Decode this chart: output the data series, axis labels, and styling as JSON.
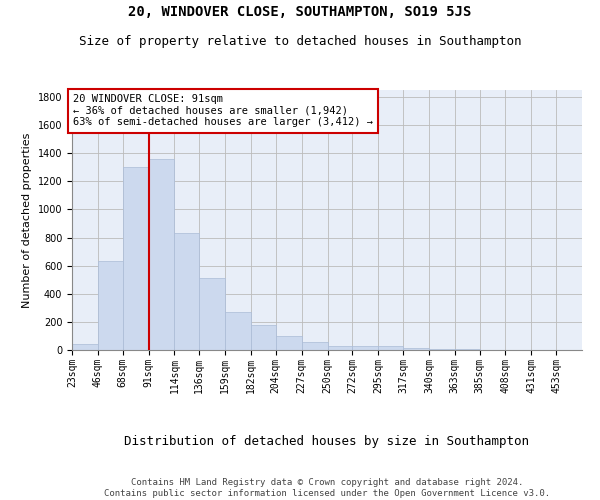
{
  "title": "20, WINDOVER CLOSE, SOUTHAMPTON, SO19 5JS",
  "subtitle": "Size of property relative to detached houses in Southampton",
  "xlabel": "Distribution of detached houses by size in Southampton",
  "ylabel": "Number of detached properties",
  "bar_color": "#ccd9ee",
  "bar_edgecolor": "#aabbd6",
  "grid_color": "#bbbbbb",
  "vline_x": 91,
  "vline_color": "#cc0000",
  "annotation_text": "20 WINDOVER CLOSE: 91sqm\n← 36% of detached houses are smaller (1,942)\n63% of semi-detached houses are larger (3,412) →",
  "annotation_box_color": "#ffffff",
  "annotation_box_edgecolor": "#cc0000",
  "footer_text": "Contains HM Land Registry data © Crown copyright and database right 2024.\nContains public sector information licensed under the Open Government Licence v3.0.",
  "bin_edges": [
    23,
    46,
    68,
    91,
    114,
    136,
    159,
    182,
    204,
    227,
    250,
    272,
    295,
    317,
    340,
    363,
    385,
    408,
    431,
    453,
    476
  ],
  "values": [
    40,
    630,
    1300,
    1360,
    830,
    510,
    270,
    175,
    100,
    55,
    30,
    28,
    25,
    15,
    10,
    5,
    3,
    2,
    2,
    1
  ],
  "ylim": [
    0,
    1850
  ],
  "yticks": [
    0,
    200,
    400,
    600,
    800,
    1000,
    1200,
    1400,
    1600,
    1800
  ],
  "title_fontsize": 10,
  "subtitle_fontsize": 9,
  "xlabel_fontsize": 9,
  "ylabel_fontsize": 8,
  "tick_fontsize": 7,
  "annotation_fontsize": 7.5,
  "footer_fontsize": 6.5
}
